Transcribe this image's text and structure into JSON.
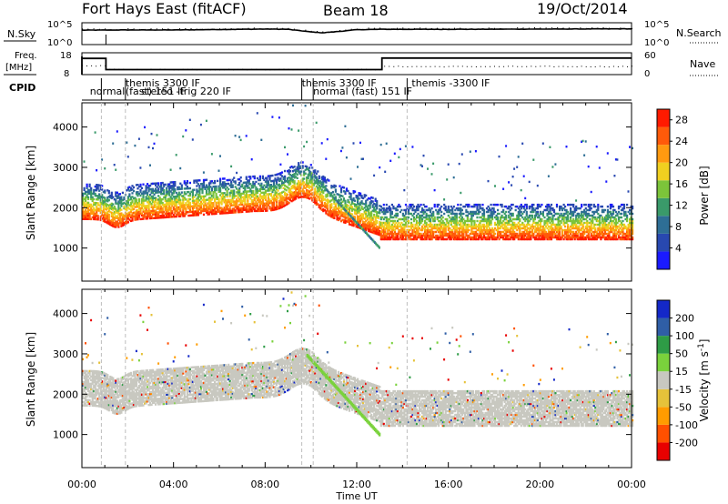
{
  "header": {
    "station": "Fort Hays East (fitACF)",
    "beam": "Beam 18",
    "date": "19/Oct/2014"
  },
  "panel_labels": {
    "nsky": "N.Sky",
    "nsearch": "N.Search",
    "freq_line1": "Freq.",
    "freq_line2": "[MHz]",
    "nave": "Nave",
    "cpid": "CPID"
  },
  "noise_axis": {
    "left_ticks": [
      "10^5",
      "10^0"
    ],
    "right_ticks": [
      "10^5",
      "10^0"
    ]
  },
  "freq_axis": {
    "left_ticks": [
      "18",
      "8"
    ],
    "right_ticks": [
      "60",
      "0"
    ]
  },
  "cpid_labels": [
    {
      "text": "normal",
      "t": 0.35,
      "row": 1
    },
    {
      "text": "themis 3300 IF",
      "t": 1.9,
      "row": 0
    },
    {
      "text": "(fast) 151 IF",
      "t": 1.9,
      "row": 1
    },
    {
      "text": "stereo -trig 220 IF",
      "t": 2.6,
      "row": 1
    },
    {
      "text": "themis 3300 IF",
      "t": 9.6,
      "row": 0
    },
    {
      "text": "normal (fast)  151 IF",
      "t": 10.1,
      "row": 1
    },
    {
      "text": "themis -3300 IF",
      "t": 14.4,
      "row": 0
    }
  ],
  "time_axis": {
    "label": "Time UT",
    "ticks": [
      "00:00",
      "04:00",
      "08:00",
      "12:00",
      "16:00",
      "20:00",
      "00:00"
    ]
  },
  "colors": {
    "power": [
      "#1a1aff",
      "#2848b0",
      "#2e6e95",
      "#3a9a6a",
      "#7cc43a",
      "#f0d020",
      "#ff9a10",
      "#ff5a0a",
      "#ff1a00"
    ],
    "velocity": [
      "#e80000",
      "#ff5000",
      "#ff9c00",
      "#e6c23a",
      "#c8c8c0",
      "#7ad23c",
      "#2e9c46",
      "#2f5ea6",
      "#1428c8"
    ],
    "ground": "#c8c8c0"
  },
  "chart_data": [
    {
      "type": "line",
      "name": "noise",
      "ylabel_left": "N.Sky",
      "ylabel_right": "N.Search",
      "x": [
        0,
        2,
        4,
        6,
        8,
        9,
        10,
        10.5,
        11,
        12,
        13,
        16,
        20,
        24
      ],
      "nsky_log": [
        3.3,
        3.35,
        3.35,
        3.45,
        3.55,
        3.5,
        2.9,
        2.7,
        2.9,
        3.4,
        3.5,
        3.5,
        3.55,
        3.6
      ]
    },
    {
      "type": "line",
      "name": "frequency",
      "ylabel_left": "Freq. [MHz]",
      "ylabel_right": "Nave",
      "freq_x": [
        0,
        1.05,
        1.05,
        13.1,
        13.1,
        24
      ],
      "freq_mhz": [
        15.4,
        15.4,
        10.3,
        10.3,
        15.6,
        15.6
      ],
      "nave_x": [
        0,
        1.05,
        1.05,
        13.1,
        13.1,
        24
      ],
      "nave": [
        24,
        24,
        14,
        14,
        22,
        22
      ]
    },
    {
      "type": "heatmap",
      "name": "power",
      "ylabel": "Slant Range [km]",
      "yticks": [
        1000,
        2000,
        3000,
        4000
      ],
      "ylim": [
        180,
        4600
      ],
      "xlim": [
        0,
        24
      ],
      "colorbar_label": "Power [dB]",
      "colorbar_ticks": [
        4,
        8,
        12,
        16,
        20,
        24,
        28
      ],
      "colorbar_range": [
        0,
        30
      ]
    },
    {
      "type": "heatmap",
      "name": "velocity",
      "ylabel": "Slant Range [km]",
      "yticks": [
        1000,
        2000,
        3000,
        4000
      ],
      "ylim": [
        180,
        4600
      ],
      "xlim": [
        0,
        24
      ],
      "colorbar_label": "Velocity [m s^-1]",
      "colorbar_ticks": [
        "200",
        "100",
        "50",
        "15",
        "-15",
        "-50",
        "-100",
        "-200"
      ]
    }
  ]
}
